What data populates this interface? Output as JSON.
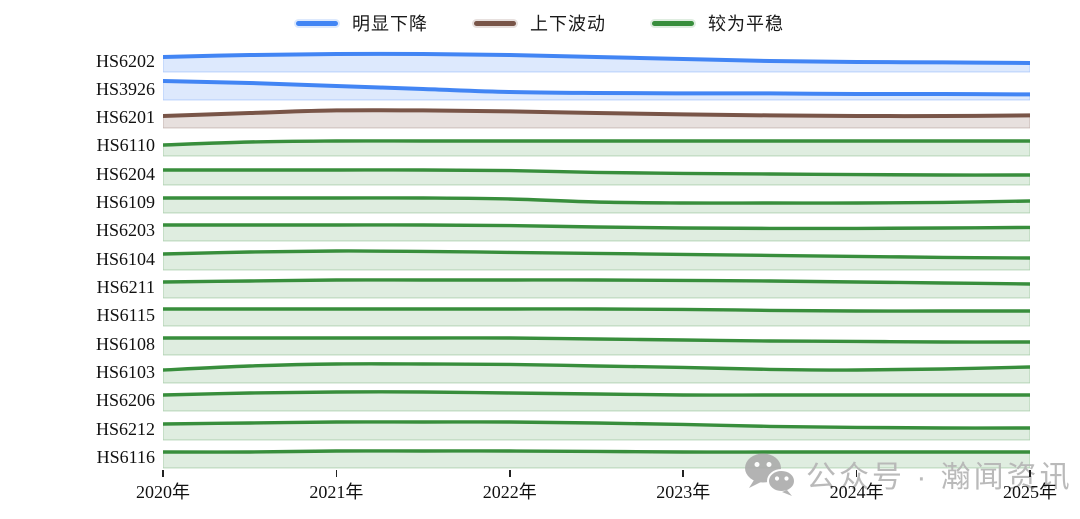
{
  "legend": {
    "items": [
      {
        "label": "明显下降",
        "color_key": "decline"
      },
      {
        "label": "上下波动",
        "color_key": "fluctuate"
      },
      {
        "label": "较为平稳",
        "color_key": "stable"
      }
    ]
  },
  "watermark": {
    "icon": "wechat-icon",
    "text": "公众号 · 瀚闻资讯",
    "color": "#b5b5b5"
  },
  "chart_data": {
    "type": "area",
    "variant": "ridgeline-small-multiples",
    "title": "",
    "xlabel": "",
    "ylabel": "",
    "grid": false,
    "legend_position": "top-center",
    "x_range": [
      2020,
      2025
    ],
    "sample_x": [
      2020,
      2020.5,
      2021,
      2021.5,
      2022,
      2022.5,
      2023,
      2023.5,
      2024,
      2024.5,
      2025
    ],
    "x_tick_labels": [
      "2020年",
      "2021年",
      "2022年",
      "2023年",
      "2024年",
      "2025年"
    ],
    "colors": {
      "decline": {
        "line": "#4285F4",
        "fill": "rgba(66,133,244,0.18)",
        "edge": "rgba(66,133,244,0.30)"
      },
      "fluctuate": {
        "line": "#795548",
        "fill": "rgba(121,85,72,0.18)",
        "edge": "rgba(121,85,72,0.30)"
      },
      "stable": {
        "line": "#388E3C",
        "fill": "rgba(56,142,60,0.16)",
        "edge": "rgba(56,142,60,0.30)"
      }
    },
    "value_note": "values are relative trend levels (0-1) read from each ridge baseline",
    "rows": [
      {
        "code": "HS6202",
        "category": "明显下降",
        "color_key": "decline",
        "values": [
          0.75,
          0.85,
          0.9,
          0.9,
          0.85,
          0.75,
          0.65,
          0.55,
          0.5,
          0.48,
          0.45
        ]
      },
      {
        "code": "HS3926",
        "category": "明显下降",
        "color_key": "decline",
        "values": [
          0.95,
          0.85,
          0.7,
          0.55,
          0.4,
          0.35,
          0.33,
          0.33,
          0.3,
          0.3,
          0.28
        ]
      },
      {
        "code": "HS6201",
        "category": "上下波动",
        "color_key": "fluctuate",
        "values": [
          0.6,
          0.75,
          0.88,
          0.88,
          0.83,
          0.75,
          0.68,
          0.63,
          0.6,
          0.6,
          0.63
        ]
      },
      {
        "code": "HS6110",
        "category": "较为平稳",
        "color_key": "stable",
        "values": [
          0.55,
          0.7,
          0.75,
          0.75,
          0.75,
          0.75,
          0.75,
          0.75,
          0.75,
          0.75,
          0.75
        ]
      },
      {
        "code": "HS6204",
        "category": "较为平稳",
        "color_key": "stable",
        "values": [
          0.75,
          0.75,
          0.75,
          0.75,
          0.72,
          0.63,
          0.58,
          0.55,
          0.52,
          0.5,
          0.5
        ]
      },
      {
        "code": "HS6109",
        "category": "较为平稳",
        "color_key": "stable",
        "values": [
          0.75,
          0.75,
          0.75,
          0.75,
          0.7,
          0.55,
          0.5,
          0.5,
          0.5,
          0.53,
          0.6
        ]
      },
      {
        "code": "HS6203",
        "category": "较为平稳",
        "color_key": "stable",
        "values": [
          0.8,
          0.8,
          0.8,
          0.8,
          0.77,
          0.7,
          0.65,
          0.63,
          0.63,
          0.65,
          0.68
        ]
      },
      {
        "code": "HS6104",
        "category": "较为平稳",
        "color_key": "stable",
        "values": [
          0.8,
          0.9,
          0.95,
          0.93,
          0.88,
          0.83,
          0.78,
          0.73,
          0.68,
          0.63,
          0.6
        ]
      },
      {
        "code": "HS6211",
        "category": "较为平稳",
        "color_key": "stable",
        "values": [
          0.8,
          0.85,
          0.9,
          0.9,
          0.9,
          0.9,
          0.88,
          0.85,
          0.8,
          0.75,
          0.7
        ]
      },
      {
        "code": "HS6115",
        "category": "较为平稳",
        "color_key": "stable",
        "values": [
          0.85,
          0.85,
          0.85,
          0.85,
          0.85,
          0.85,
          0.83,
          0.78,
          0.75,
          0.75,
          0.75
        ]
      },
      {
        "code": "HS6108",
        "category": "较为平稳",
        "color_key": "stable",
        "values": [
          0.85,
          0.85,
          0.85,
          0.85,
          0.85,
          0.8,
          0.75,
          0.7,
          0.68,
          0.65,
          0.65
        ]
      },
      {
        "code": "HS6103",
        "category": "较为平稳",
        "color_key": "stable",
        "values": [
          0.65,
          0.85,
          0.95,
          0.95,
          0.93,
          0.85,
          0.78,
          0.68,
          0.65,
          0.7,
          0.8
        ]
      },
      {
        "code": "HS6206",
        "category": "较为平稳",
        "color_key": "stable",
        "values": [
          0.8,
          0.9,
          0.95,
          0.95,
          0.9,
          0.85,
          0.8,
          0.8,
          0.8,
          0.8,
          0.8
        ]
      },
      {
        "code": "HS6212",
        "category": "较为平稳",
        "color_key": "stable",
        "values": [
          0.8,
          0.85,
          0.9,
          0.9,
          0.9,
          0.85,
          0.78,
          0.68,
          0.63,
          0.6,
          0.6
        ]
      },
      {
        "code": "HS6116",
        "category": "较为平稳",
        "color_key": "stable",
        "values": [
          0.8,
          0.8,
          0.85,
          0.85,
          0.85,
          0.83,
          0.8,
          0.8,
          0.8,
          0.8,
          0.8
        ]
      }
    ]
  }
}
